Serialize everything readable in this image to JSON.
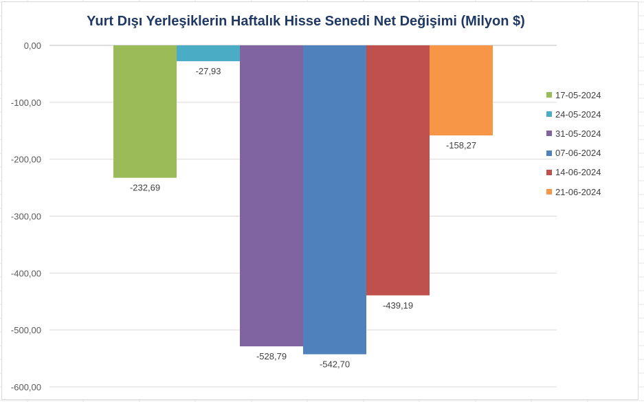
{
  "chart_data": {
    "type": "bar",
    "title": "Yurt Dışı Yerleşiklerin Haftalık Hisse Senedi Net Değişimi (Milyon $)",
    "xlabel": "",
    "ylabel": "",
    "ylim": [
      -600,
      0
    ],
    "yticks": [
      0,
      -100,
      -200,
      -300,
      -400,
      -500,
      -600
    ],
    "ytick_labels": [
      "0,00",
      "-100,00",
      "-200,00",
      "-300,00",
      "-400,00",
      "-500,00",
      "-600,00"
    ],
    "grid": true,
    "legend_position": "right",
    "series": [
      {
        "name": "17-05-2024",
        "value": -232.69,
        "label": "-232,69",
        "color": "#9bbb59"
      },
      {
        "name": "24-05-2024",
        "value": -27.93,
        "label": "-27,93",
        "color": "#4bacc6"
      },
      {
        "name": "31-05-2024",
        "value": -528.79,
        "label": "-528,79",
        "color": "#8064a2"
      },
      {
        "name": "07-06-2024",
        "value": -542.7,
        "label": "-542,70",
        "color": "#4f81bd"
      },
      {
        "name": "14-06-2024",
        "value": -439.19,
        "label": "-439,19",
        "color": "#c0504d"
      },
      {
        "name": "21-06-2024",
        "value": -158.27,
        "label": "-158,27",
        "color": "#f79646"
      }
    ]
  }
}
